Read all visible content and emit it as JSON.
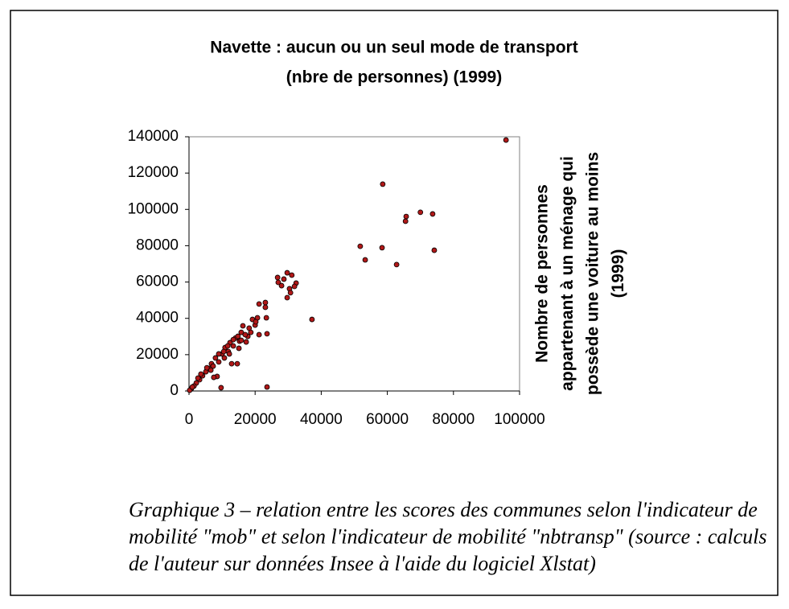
{
  "chart_data": {
    "type": "scatter",
    "title": [
      "Navette : aucun ou un seul mode de transport",
      "(nbre de personnes) (1999)"
    ],
    "y_label": [
      "Nombre de personnes",
      "appartenant à un ménage qui",
      "possède une voiture au moins",
      "(1999)"
    ],
    "color": "#b01818",
    "xlim": [
      0,
      100000
    ],
    "ylim": [
      0,
      140000
    ],
    "xticks": [
      0,
      20000,
      40000,
      60000,
      80000,
      100000
    ],
    "yticks": [
      0,
      20000,
      40000,
      60000,
      80000,
      100000,
      120000,
      140000
    ],
    "x": [
      95900,
      58600,
      70000,
      73700,
      65700,
      65500,
      51800,
      58400,
      74200,
      53300,
      62800,
      37200,
      23600,
      26800,
      27000,
      29700,
      31100,
      32400,
      28700,
      28000,
      30400,
      30700,
      29700,
      31900,
      23100,
      21200,
      23100,
      23400,
      23600,
      21200,
      20000,
      19200,
      20700,
      18200,
      17800,
      16300,
      15800,
      15300,
      15100,
      14600,
      12900,
      14100,
      13400,
      12400,
      11900,
      10900,
      10000,
      9000,
      9700,
      8000,
      8500,
      7500,
      6800,
      6100,
      5100,
      4100,
      3200,
      2200,
      1500,
      700,
      200,
      10700,
      11700,
      13400,
      17000,
      18700,
      20200,
      9000,
      7300,
      6600,
      5400,
      3600,
      2700,
      1000,
      15800,
      17300,
      14800,
      12200,
      10500
    ],
    "values": [
      138200,
      113900,
      98400,
      97500,
      96100,
      93500,
      79700,
      78900,
      77500,
      72200,
      69600,
      39400,
      2200,
      62500,
      59800,
      65100,
      63800,
      59400,
      61600,
      58000,
      56300,
      54100,
      51400,
      57600,
      48700,
      47900,
      46100,
      40300,
      31500,
      31000,
      36300,
      39400,
      40300,
      34600,
      30100,
      35900,
      32300,
      27400,
      23500,
      15000,
      15000,
      29200,
      24800,
      26600,
      21700,
      23900,
      20400,
      20400,
      1800,
      18200,
      8000,
      7500,
      15000,
      12400,
      10600,
      8400,
      6200,
      4400,
      2700,
      1300,
      400,
      18200,
      24800,
      28300,
      31000,
      32300,
      38100,
      16000,
      13700,
      11500,
      12800,
      9300,
      7100,
      2200,
      27900,
      27000,
      30100,
      20400,
      21700
    ]
  },
  "caption": [
    "Graphique 3 – relation entre les scores des communes selon l'indicateur de",
    "mobilité \"mob\" et selon l'indicateur de mobilité \"nbtransp\" (source : calculs",
    "de l'auteur sur données Insee à l'aide du logiciel Xlstat)"
  ]
}
